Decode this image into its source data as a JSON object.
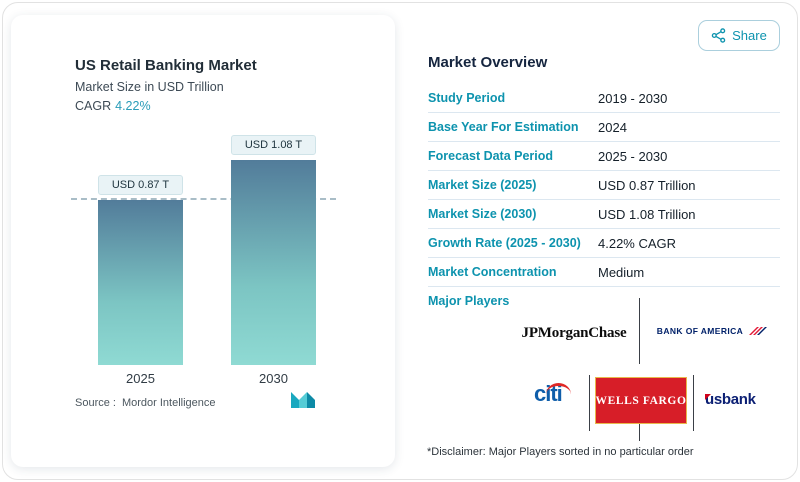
{
  "share_button": {
    "label": "Share",
    "icon": "share-nodes-icon"
  },
  "chart": {
    "title": "US Retail Banking Market",
    "subtitle": "Market Size in USD Trillion",
    "cagr_label": "CAGR",
    "cagr_value": "4.22%",
    "source_label": "Source :",
    "source_value": "Mordor Intelligence",
    "logo": "mordor-intelligence-logo"
  },
  "chart_data": {
    "type": "bar",
    "title": "US Retail Banking Market",
    "ylabel": "Market Size in USD Trillion",
    "categories": [
      "2025",
      "2030"
    ],
    "values": [
      0.87,
      1.08
    ],
    "bar_value_labels": [
      "USD 0.87 T",
      "USD 1.08 T"
    ],
    "cagr_percent": "4.22%",
    "ylim": [
      0,
      1.2
    ],
    "reference_line_value": 0.87,
    "grid": "off",
    "legend": "none"
  },
  "overview": {
    "title": "Market Overview",
    "rows": [
      {
        "label": "Study Period",
        "value": "2019 - 2030"
      },
      {
        "label": "Base Year For Estimation",
        "value": "2024"
      },
      {
        "label": "Forecast Data Period",
        "value": "2025 - 2030"
      },
      {
        "label": "Market Size (2025)",
        "value": "USD 0.87 Trillion"
      },
      {
        "label": "Market Size (2030)",
        "value": "USD 1.08 Trillion"
      },
      {
        "label": "Growth Rate (2025 - 2030)",
        "value": "4.22% CAGR"
      },
      {
        "label": "Market Concentration",
        "value": "Medium"
      }
    ],
    "major_players_label": "Major Players",
    "players": [
      "JPMorganChase",
      "BANK OF AMERICA",
      "citi",
      "WELLS FARGO",
      "usbank"
    ],
    "disclaimer": "*Disclaimer: Major Players sorted in no particular order"
  },
  "colors": {
    "accent_teal": "#0d93ae",
    "heading_navy": "#15253f",
    "bar_gradient_top": "#527c9a",
    "bar_gradient_bottom": "#8fdad3",
    "wells_fargo_red": "#d71e28",
    "bofa_navy": "#012169",
    "citi_blue": "#0f5eaa",
    "usbank_blue": "#0c2074",
    "dashed_reference_line": "#a9bdc7"
  }
}
